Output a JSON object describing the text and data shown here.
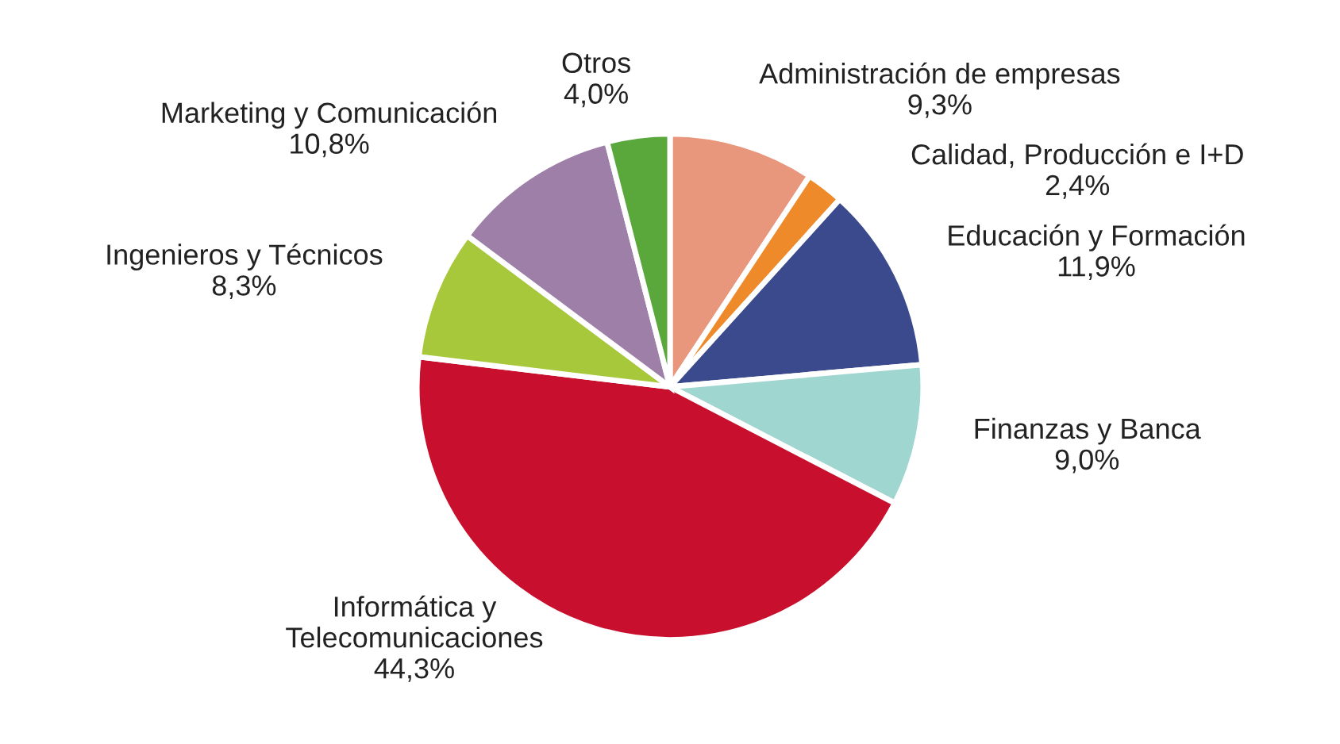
{
  "chart_data": {
    "type": "pie",
    "categories": [
      "Administración de empresas",
      "Calidad, Producción e I+D",
      "Educación y Formación",
      "Finanzas y Banca",
      "Informática y\nTelecomunicaciones",
      "Ingenieros y Técnicos",
      "Marketing y Comunicación",
      "Otros"
    ],
    "values": [
      9.3,
      2.4,
      11.9,
      9.0,
      44.3,
      8.3,
      10.8,
      4.0
    ],
    "value_labels": [
      "9,3%",
      "2,4%",
      "11,9%",
      "9,0%",
      "44,3%",
      "8,3%",
      "10,8%",
      "4,0%"
    ],
    "colors": [
      "#e8967c",
      "#ee8a2a",
      "#3a4a8c",
      "#9fd6d0",
      "#c8102e",
      "#a8c83c",
      "#9e7fa8",
      "#5aa83c"
    ]
  }
}
